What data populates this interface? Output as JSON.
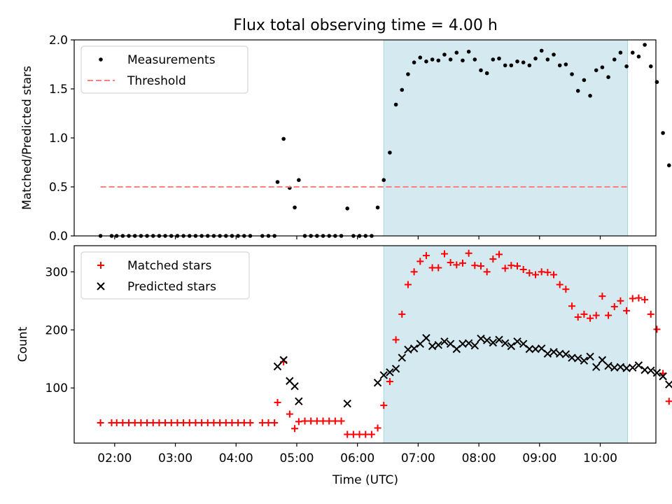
{
  "figure": {
    "title": "Flux total observing time = 4.00 h",
    "xlabel": "Time (UTC)"
  },
  "chart_data": [
    {
      "panel": "top",
      "type": "scatter",
      "ylabel": "Matched/Predicted stars",
      "xlim": [
        "01:20",
        "10:55"
      ],
      "ylim": [
        0,
        2.0
      ],
      "yticks": [
        "0.0",
        "0.5",
        "1.0",
        "1.5",
        "2.0"
      ],
      "xticks": [
        "02:00",
        "03:00",
        "04:00",
        "05:00",
        "06:00",
        "07:00",
        "08:00",
        "09:00",
        "10:00"
      ],
      "shaded_interval": {
        "start": "06:26",
        "end": "10:27",
        "color": "#d4eaf0"
      },
      "legend": {
        "placement": "top-left",
        "entries": [
          "Measurements",
          "Threshold"
        ]
      },
      "series": [
        {
          "name": "Measurements",
          "marker": "dot",
          "color": "#000000",
          "points": [
            [
              "01:46",
              0
            ],
            [
              "01:57",
              0
            ],
            [
              "02:02",
              0
            ],
            [
              "02:08",
              0
            ],
            [
              "02:14",
              0
            ],
            [
              "02:20",
              0
            ],
            [
              "02:26",
              0
            ],
            [
              "02:32",
              0
            ],
            [
              "02:38",
              0
            ],
            [
              "02:44",
              0
            ],
            [
              "02:50",
              0
            ],
            [
              "02:56",
              0
            ],
            [
              "03:02",
              0
            ],
            [
              "03:08",
              0
            ],
            [
              "03:14",
              0
            ],
            [
              "03:20",
              0
            ],
            [
              "03:26",
              0
            ],
            [
              "03:32",
              0
            ],
            [
              "03:38",
              0
            ],
            [
              "03:44",
              0
            ],
            [
              "03:50",
              0
            ],
            [
              "03:56",
              0
            ],
            [
              "04:02",
              0
            ],
            [
              "04:08",
              0
            ],
            [
              "04:14",
              0
            ],
            [
              "04:26",
              0
            ],
            [
              "04:32",
              0
            ],
            [
              "04:38",
              0
            ],
            [
              "04:41",
              0.55
            ],
            [
              "04:47",
              0.99
            ],
            [
              "04:53",
              0.49
            ],
            [
              "04:58",
              0.29
            ],
            [
              "05:02",
              0.57
            ],
            [
              "05:08",
              0
            ],
            [
              "05:14",
              0
            ],
            [
              "05:20",
              0
            ],
            [
              "05:26",
              0
            ],
            [
              "05:32",
              0
            ],
            [
              "05:38",
              0
            ],
            [
              "05:44",
              0
            ],
            [
              "05:50",
              0.28
            ],
            [
              "05:56",
              0
            ],
            [
              "06:02",
              0
            ],
            [
              "06:08",
              0
            ],
            [
              "06:14",
              0
            ],
            [
              "06:20",
              0.29
            ],
            [
              "06:26",
              0.57
            ],
            [
              "06:32",
              0.85
            ],
            [
              "06:38",
              1.34
            ],
            [
              "06:44",
              1.49
            ],
            [
              "06:50",
              1.65
            ],
            [
              "06:56",
              1.77
            ],
            [
              "07:02",
              1.82
            ],
            [
              "07:08",
              1.78
            ],
            [
              "07:14",
              1.8
            ],
            [
              "07:20",
              1.79
            ],
            [
              "07:26",
              1.85
            ],
            [
              "07:32",
              1.8
            ],
            [
              "07:38",
              1.87
            ],
            [
              "07:44",
              1.79
            ],
            [
              "07:50",
              1.88
            ],
            [
              "07:56",
              1.8
            ],
            [
              "08:02",
              1.69
            ],
            [
              "08:08",
              1.66
            ],
            [
              "08:14",
              1.8
            ],
            [
              "08:20",
              1.81
            ],
            [
              "08:26",
              1.74
            ],
            [
              "08:32",
              1.74
            ],
            [
              "08:38",
              1.78
            ],
            [
              "08:44",
              1.77
            ],
            [
              "08:50",
              1.74
            ],
            [
              "08:56",
              1.81
            ],
            [
              "09:02",
              1.89
            ],
            [
              "09:08",
              1.8
            ],
            [
              "09:14",
              1.85
            ],
            [
              "09:20",
              1.74
            ],
            [
              "09:26",
              1.75
            ],
            [
              "09:32",
              1.65
            ],
            [
              "09:38",
              1.48
            ],
            [
              "09:44",
              1.59
            ],
            [
              "09:50",
              1.43
            ],
            [
              "09:56",
              1.69
            ],
            [
              "10:02",
              1.72
            ],
            [
              "10:08",
              1.62
            ],
            [
              "10:14",
              1.8
            ],
            [
              "10:20",
              1.87
            ],
            [
              "10:26",
              1.73
            ],
            [
              "10:32",
              1.87
            ],
            [
              "10:38",
              1.83
            ],
            [
              "10:44",
              1.95
            ],
            [
              "10:50",
              1.73
            ],
            [
              "10:56",
              1.57
            ],
            [
              "11:02",
              1.05
            ],
            [
              "11:08",
              0.72
            ]
          ]
        },
        {
          "name": "Threshold",
          "marker": "dashed-line",
          "color": "#ff7f7f",
          "points": [
            [
              "01:46",
              0.5
            ],
            [
              "10:27",
              0.5
            ]
          ]
        }
      ]
    },
    {
      "panel": "bottom",
      "type": "scatter",
      "ylabel": "Count",
      "ylim": [
        5,
        345
      ],
      "yticks": [
        "100",
        "200",
        "300"
      ],
      "legend": {
        "placement": "top-left",
        "entries": [
          "Matched stars",
          "Predicted stars"
        ]
      },
      "series": [
        {
          "name": "Matched stars",
          "marker": "plus",
          "color": "#ff0000",
          "points": [
            [
              "01:46",
              40
            ],
            [
              "01:57",
              40
            ],
            [
              "02:02",
              40
            ],
            [
              "02:08",
              40
            ],
            [
              "02:14",
              40
            ],
            [
              "02:20",
              40
            ],
            [
              "02:26",
              40
            ],
            [
              "02:32",
              40
            ],
            [
              "02:38",
              40
            ],
            [
              "02:44",
              40
            ],
            [
              "02:50",
              40
            ],
            [
              "02:56",
              40
            ],
            [
              "03:02",
              40
            ],
            [
              "03:08",
              40
            ],
            [
              "03:14",
              40
            ],
            [
              "03:20",
              40
            ],
            [
              "03:26",
              40
            ],
            [
              "03:32",
              40
            ],
            [
              "03:38",
              40
            ],
            [
              "03:44",
              40
            ],
            [
              "03:50",
              40
            ],
            [
              "03:56",
              40
            ],
            [
              "04:02",
              40
            ],
            [
              "04:08",
              40
            ],
            [
              "04:14",
              40
            ],
            [
              "04:26",
              40
            ],
            [
              "04:32",
              40
            ],
            [
              "04:38",
              40
            ],
            [
              "04:41",
              75
            ],
            [
              "04:47",
              145
            ],
            [
              "04:53",
              55
            ],
            [
              "04:58",
              30
            ],
            [
              "05:02",
              42
            ],
            [
              "05:08",
              43
            ],
            [
              "05:14",
              43
            ],
            [
              "05:20",
              43
            ],
            [
              "05:26",
              43
            ],
            [
              "05:32",
              43
            ],
            [
              "05:38",
              43
            ],
            [
              "05:44",
              43
            ],
            [
              "05:50",
              20
            ],
            [
              "05:56",
              20
            ],
            [
              "06:02",
              20
            ],
            [
              "06:08",
              20
            ],
            [
              "06:14",
              20
            ],
            [
              "06:20",
              31
            ],
            [
              "06:26",
              70
            ],
            [
              "06:32",
              111
            ],
            [
              "06:38",
              183
            ],
            [
              "06:44",
              227
            ],
            [
              "06:50",
              278
            ],
            [
              "06:56",
              300
            ],
            [
              "07:02",
              318
            ],
            [
              "07:08",
              328
            ],
            [
              "07:14",
              307
            ],
            [
              "07:20",
              307
            ],
            [
              "07:26",
              331
            ],
            [
              "07:32",
              316
            ],
            [
              "07:38",
              312
            ],
            [
              "07:44",
              315
            ],
            [
              "07:50",
              332
            ],
            [
              "07:56",
              311
            ],
            [
              "08:02",
              310
            ],
            [
              "08:08",
              300
            ],
            [
              "08:14",
              322
            ],
            [
              "08:20",
              330
            ],
            [
              "08:26",
              306
            ],
            [
              "08:32",
              311
            ],
            [
              "08:38",
              310
            ],
            [
              "08:44",
              304
            ],
            [
              "08:50",
              298
            ],
            [
              "08:56",
              295
            ],
            [
              "09:02",
              300
            ],
            [
              "09:08",
              299
            ],
            [
              "09:14",
              295
            ],
            [
              "09:20",
              278
            ],
            [
              "09:26",
              270
            ],
            [
              "09:32",
              241
            ],
            [
              "09:38",
              222
            ],
            [
              "09:44",
              227
            ],
            [
              "09:50",
              220
            ],
            [
              "09:56",
              225
            ],
            [
              "10:02",
              258
            ],
            [
              "10:08",
              225
            ],
            [
              "10:14",
              240
            ],
            [
              "10:20",
              250
            ],
            [
              "10:26",
              233
            ],
            [
              "10:32",
              254
            ],
            [
              "10:38",
              255
            ],
            [
              "10:44",
              252
            ],
            [
              "10:50",
              227
            ],
            [
              "10:56",
              201
            ],
            [
              "11:02",
              125
            ],
            [
              "11:08",
              77
            ]
          ]
        },
        {
          "name": "Predicted stars",
          "marker": "x",
          "color": "#000000",
          "points": [
            [
              "04:41",
              137
            ],
            [
              "04:47",
              148
            ],
            [
              "04:53",
              112
            ],
            [
              "04:58",
              103
            ],
            [
              "05:02",
              77
            ],
            [
              "05:50",
              73
            ],
            [
              "06:20",
              109
            ],
            [
              "06:26",
              122
            ],
            [
              "06:32",
              127
            ],
            [
              "06:38",
              133
            ],
            [
              "06:44",
              152
            ],
            [
              "06:50",
              166
            ],
            [
              "06:56",
              168
            ],
            [
              "07:02",
              176
            ],
            [
              "07:08",
              186
            ],
            [
              "07:14",
              172
            ],
            [
              "07:20",
              174
            ],
            [
              "07:26",
              180
            ],
            [
              "07:32",
              176
            ],
            [
              "07:38",
              167
            ],
            [
              "07:44",
              176
            ],
            [
              "07:50",
              177
            ],
            [
              "07:56",
              173
            ],
            [
              "08:02",
              185
            ],
            [
              "08:08",
              182
            ],
            [
              "08:14",
              178
            ],
            [
              "08:20",
              183
            ],
            [
              "08:26",
              177
            ],
            [
              "08:32",
              172
            ],
            [
              "08:38",
              180
            ],
            [
              "08:44",
              176
            ],
            [
              "08:50",
              167
            ],
            [
              "08:56",
              167
            ],
            [
              "09:02",
              168
            ],
            [
              "09:08",
              159
            ],
            [
              "09:14",
              162
            ],
            [
              "09:20",
              159
            ],
            [
              "09:26",
              158
            ],
            [
              "09:32",
              152
            ],
            [
              "09:38",
              151
            ],
            [
              "09:44",
              147
            ],
            [
              "09:50",
              154
            ],
            [
              "09:56",
              136
            ],
            [
              "10:02",
              148
            ],
            [
              "10:08",
              138
            ],
            [
              "10:14",
              135
            ],
            [
              "10:20",
              136
            ],
            [
              "10:26",
              134
            ],
            [
              "10:32",
              135
            ],
            [
              "10:38",
              139
            ],
            [
              "10:44",
              131
            ],
            [
              "10:50",
              130
            ],
            [
              "10:56",
              126
            ],
            [
              "11:02",
              120
            ],
            [
              "11:08",
              106
            ]
          ]
        }
      ]
    }
  ]
}
